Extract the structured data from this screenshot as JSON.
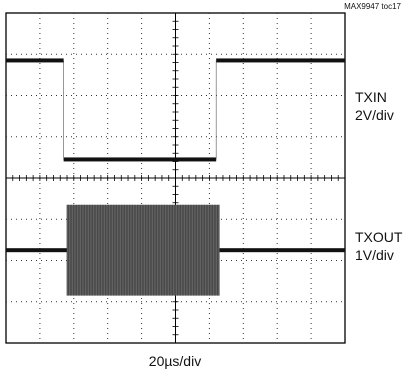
{
  "figure_tag": "MAX9947 toc17",
  "chart_data": {
    "type": "line",
    "title": "",
    "grid": true,
    "divisions": {
      "x": 10,
      "y": 8
    },
    "x_scale": "20µs/div",
    "channels": [
      {
        "name": "TXIN",
        "scale": "2V/div",
        "kind": "square-pulse",
        "high_level_div": 2.85,
        "low_level_div": 0.45,
        "low_start_div": 1.7,
        "low_end_div": 6.2
      },
      {
        "name": "TXOUT",
        "scale": "1V/div",
        "kind": "burst",
        "baseline_div": -1.75,
        "burst_start_div": 1.8,
        "burst_end_div": 6.3,
        "burst_amplitude_div": 1.1
      }
    ]
  }
}
